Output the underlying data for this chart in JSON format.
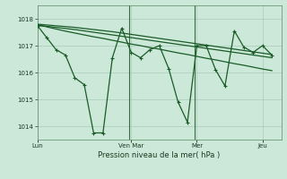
{
  "title": "Pression niveau de la mer( hPa )",
  "bg_color": "#cce8d8",
  "grid_color": "#aaccbb",
  "line_color": "#1a5c28",
  "ylim": [
    1013.5,
    1018.5
  ],
  "yticks": [
    1014,
    1015,
    1016,
    1017,
    1018
  ],
  "x_tick_labels": [
    "Lun",
    "Ven Mar",
    "Mer",
    "Jeu"
  ],
  "x_tick_pos": [
    0,
    10,
    17,
    24
  ],
  "xlim": [
    0,
    26
  ],
  "vline_positions": [
    9.8,
    16.8
  ],
  "s1_x": [
    0,
    1,
    2,
    3,
    4,
    5,
    6,
    7,
    8,
    9,
    10,
    11,
    12,
    13,
    14,
    15,
    16,
    17,
    18,
    19,
    20,
    21,
    22,
    23,
    24,
    25
  ],
  "s1_y": [
    1017.75,
    1017.3,
    1016.85,
    1016.65,
    1015.8,
    1015.55,
    1013.75,
    1013.75,
    1016.55,
    1017.65,
    1016.75,
    1016.55,
    1016.85,
    1017.0,
    1016.15,
    1014.9,
    1014.15,
    1017.0,
    1017.0,
    1016.1,
    1015.5,
    1017.55,
    1016.95,
    1016.75,
    1017.0,
    1016.65
  ],
  "s2_x": [
    0,
    1,
    2,
    3,
    4,
    5,
    6,
    7,
    8,
    9,
    10,
    11,
    12,
    13,
    14,
    15,
    16,
    17,
    18,
    19,
    20,
    21,
    22,
    23,
    24,
    25
  ],
  "s2_y": [
    1017.75,
    1017.72,
    1017.68,
    1017.64,
    1017.6,
    1017.55,
    1017.5,
    1017.45,
    1017.4,
    1017.35,
    1017.3,
    1017.25,
    1017.2,
    1017.15,
    1017.1,
    1017.05,
    1017.0,
    1016.95,
    1016.9,
    1016.85,
    1016.8,
    1016.75,
    1016.7,
    1016.65,
    1016.6,
    1016.55
  ],
  "s3_x": [
    0,
    1,
    2,
    3,
    4,
    5,
    6,
    7,
    8,
    9,
    10,
    11,
    12,
    13,
    14,
    15,
    16,
    17,
    18,
    19,
    20,
    21,
    22,
    23,
    24,
    25
  ],
  "s3_y": [
    1017.8,
    1017.77,
    1017.74,
    1017.71,
    1017.68,
    1017.64,
    1017.6,
    1017.56,
    1017.52,
    1017.47,
    1017.42,
    1017.37,
    1017.32,
    1017.27,
    1017.22,
    1017.17,
    1017.12,
    1017.07,
    1017.02,
    1016.97,
    1016.92,
    1016.87,
    1016.82,
    1016.77,
    1016.72,
    1016.67
  ],
  "s4_x": [
    0,
    1,
    2,
    3,
    4,
    5,
    6,
    7,
    8,
    9,
    10,
    11,
    12,
    13,
    14,
    15,
    16,
    17,
    18,
    19,
    20,
    21,
    22,
    23,
    24,
    25
  ],
  "s4_y": [
    1017.78,
    1017.7,
    1017.62,
    1017.54,
    1017.47,
    1017.4,
    1017.33,
    1017.27,
    1017.2,
    1017.13,
    1017.06,
    1017.0,
    1016.93,
    1016.87,
    1016.8,
    1016.73,
    1016.67,
    1016.6,
    1016.53,
    1016.47,
    1016.4,
    1016.33,
    1016.27,
    1016.2,
    1016.13,
    1016.07
  ]
}
